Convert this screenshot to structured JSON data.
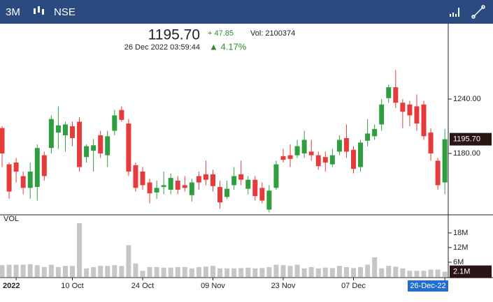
{
  "header": {
    "period": "3M",
    "exchange": "NSE",
    "price": "1195.70",
    "change": "+ 47.85",
    "volume": "Vol: 2100374",
    "timestamp": "26 Dec 2022 03:59:44",
    "change_pct": "▲ 4.17%"
  },
  "chart_data": {
    "type": "candlestick",
    "up_color": "#2e9e3e",
    "down_color": "#e63a3b",
    "volume_color": "#c6c6c6",
    "ylim": [
      1112.3,
      1318.5
    ],
    "yticks": [
      {
        "value": 1240,
        "label": "1240.00"
      },
      {
        "value": 1180,
        "label": "1180.00"
      }
    ],
    "volume_title": "VOL",
    "vlim": [
      0,
      25.4
    ],
    "vticks": [
      {
        "value": 18,
        "label": "18M"
      },
      {
        "value": 12,
        "label": "12M"
      },
      {
        "value": 6,
        "label": "6M"
      }
    ],
    "xticks": [
      {
        "value": 2,
        "label": "2022"
      },
      {
        "value": 10,
        "label": "10 Oct"
      },
      {
        "value": 20,
        "label": "24 Oct"
      },
      {
        "value": 30,
        "label": "09 Nov"
      },
      {
        "value": 40,
        "label": "23 Nov"
      },
      {
        "value": 50,
        "label": "07 Dec"
      },
      {
        "value": 63,
        "label": "26-Dec-22"
      }
    ],
    "last_price": {
      "value": 1195.7,
      "label": "1195.70"
    },
    "last_volume": {
      "value": 2.1,
      "label": "2.1M"
    },
    "open": [
      1208,
      1168,
      1170,
      1155,
      1142,
      1143,
      1178,
      1186,
      1203,
      1200,
      1210,
      1215,
      1176,
      1183,
      1200,
      1178,
      1205,
      1228,
      1213,
      1167,
      1160,
      1148,
      1137,
      1143,
      1140,
      1150,
      1145,
      1134,
      1155,
      1157,
      1157,
      1143,
      1132,
      1145,
      1157,
      1141,
      1151,
      1142,
      1118,
      1142,
      1177,
      1178,
      1178,
      1180,
      1182,
      1178,
      1176,
      1168,
      1182,
      1197,
      1184,
      1165,
      1194,
      1199,
      1212,
      1241,
      1253,
      1236,
      1234,
      1232,
      1234,
      1203,
      1172,
      1148
    ],
    "high": [
      1210,
      1170,
      1175,
      1160,
      1170,
      1190,
      1182,
      1222,
      1232,
      1215,
      1215,
      1220,
      1190,
      1196,
      1205,
      1205,
      1228,
      1232,
      1218,
      1170,
      1165,
      1152,
      1150,
      1160,
      1158,
      1155,
      1155,
      1152,
      1160,
      1172,
      1162,
      1150,
      1150,
      1165,
      1172,
      1155,
      1155,
      1148,
      1145,
      1172,
      1185,
      1190,
      1195,
      1205,
      1195,
      1182,
      1182,
      1185,
      1200,
      1212,
      1188,
      1195,
      1218,
      1212,
      1240,
      1256,
      1272,
      1240,
      1238,
      1245,
      1238,
      1208,
      1175,
      1207
    ],
    "low": [
      1165,
      1130,
      1148,
      1135,
      1130,
      1128,
      1150,
      1180,
      1185,
      1182,
      1188,
      1160,
      1170,
      1160,
      1175,
      1165,
      1200,
      1215,
      1155,
      1138,
      1140,
      1125,
      1130,
      1135,
      1135,
      1135,
      1138,
      1127,
      1140,
      1145,
      1138,
      1119,
      1130,
      1140,
      1145,
      1135,
      1128,
      1125,
      1115,
      1140,
      1170,
      1165,
      1175,
      1175,
      1172,
      1162,
      1160,
      1165,
      1178,
      1175,
      1158,
      1160,
      1188,
      1195,
      1205,
      1236,
      1230,
      1208,
      1210,
      1205,
      1195,
      1172,
      1140,
      1135
    ],
    "close": [
      1180,
      1138,
      1160,
      1142,
      1160,
      1186,
      1155,
      1218,
      1211,
      1212,
      1197,
      1165,
      1188,
      1189,
      1180,
      1199,
      1222,
      1217,
      1160,
      1142,
      1145,
      1136,
      1142,
      1145,
      1153,
      1140,
      1142,
      1148,
      1148,
      1151,
      1144,
      1126,
      1141,
      1155,
      1151,
      1151,
      1133,
      1128,
      1139,
      1168,
      1173,
      1174,
      1188,
      1195,
      1178,
      1166,
      1170,
      1178,
      1195,
      1182,
      1163,
      1192,
      1202,
      1207,
      1234,
      1253,
      1236,
      1226,
      1222,
      1213,
      1199,
      1180,
      1145,
      1195.7
    ],
    "volumes": [
      4.8,
      5,
      5,
      5,
      5.2,
      4.8,
      4,
      5,
      4,
      4.5,
      4.5,
      22,
      3.5,
      4,
      4.5,
      4.5,
      4.8,
      4.5,
      13,
      5.5,
      2.5,
      4,
      4,
      3.8,
      3.8,
      4,
      4,
      3.5,
      4,
      4.2,
      4.5,
      3.5,
      3.5,
      3.5,
      3.6,
      3.8,
      3.5,
      3.6,
      4,
      5,
      4.8,
      4.5,
      5,
      3.5,
      4,
      3.5,
      3.8,
      3.6,
      4.5,
      4,
      3.6,
      4,
      5,
      8,
      3.5,
      4.5,
      4.2,
      3.5,
      2.5,
      2.5,
      2.5,
      3,
      3,
      2.1
    ]
  }
}
